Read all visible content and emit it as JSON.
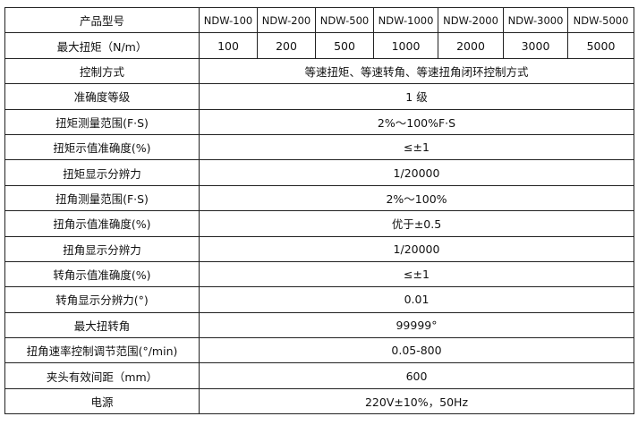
{
  "header": {
    "label": "产品型号",
    "models": [
      "NDW-100",
      "NDW-200",
      "NDW-500",
      "NDW-1000",
      "NDW-2000",
      "NDW-3000",
      "NDW-5000"
    ]
  },
  "torque_row": {
    "label": "最大扭矩（N/m）",
    "values": [
      "100",
      "200",
      "500",
      "1000",
      "2000",
      "3000",
      "5000"
    ]
  },
  "specs": [
    {
      "label": "控制方式",
      "value": "等速扭矩、等速转角、等速扭角闭环控制方式"
    },
    {
      "label": "准确度等级",
      "value": "1 级"
    },
    {
      "label": "扭矩测量范围(F·S)",
      "value": "2%～100%F·S"
    },
    {
      "label": "扭矩示值准确度(%)",
      "value": "≤±1"
    },
    {
      "label": "扭矩显示分辨力",
      "value": "1/20000"
    },
    {
      "label": "扭角测量范围(F·S)",
      "value": "2%～100%"
    },
    {
      "label": "扭角示值准确度(%)",
      "value": "优于±0.5"
    },
    {
      "label": "扭角显示分辨力",
      "value": "1/20000"
    },
    {
      "label": "转角示值准确度(%)",
      "value": "≤±1"
    },
    {
      "label": "转角显示分辨力(°)",
      "value": "0.01"
    },
    {
      "label": "最大扭转角",
      "value": "99999°"
    },
    {
      "label": "扭角速率控制调节范围(°/min)",
      "value": "0.05-800"
    },
    {
      "label": "夹头有效间距（mm）",
      "value": "600"
    },
    {
      "label": "电源",
      "value": "220V±10%，50Hz"
    }
  ]
}
